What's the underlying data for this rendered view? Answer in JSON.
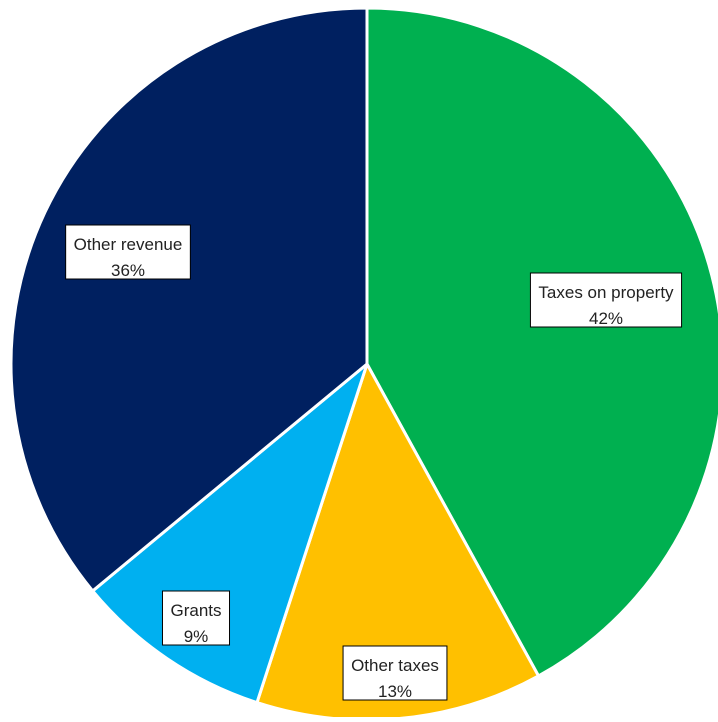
{
  "chart_data": {
    "type": "pie",
    "title": "",
    "slices": [
      {
        "label": "Taxes on property",
        "percent_label": "42%",
        "value": 42,
        "color": "#00b050"
      },
      {
        "label": "Other taxes",
        "percent_label": "13%",
        "value": 13,
        "color": "#ffc000"
      },
      {
        "label": "Grants",
        "percent_label": "9%",
        "value": 9,
        "color": "#00b0f0"
      },
      {
        "label": "Other revenue",
        "percent_label": "36%",
        "value": 36,
        "color": "#002060"
      }
    ],
    "start": "12 o'clock",
    "direction": "clockwise",
    "slice_border_color": "#ffffff",
    "legend": "none",
    "data_labels": "category name and percentage, boxed"
  }
}
